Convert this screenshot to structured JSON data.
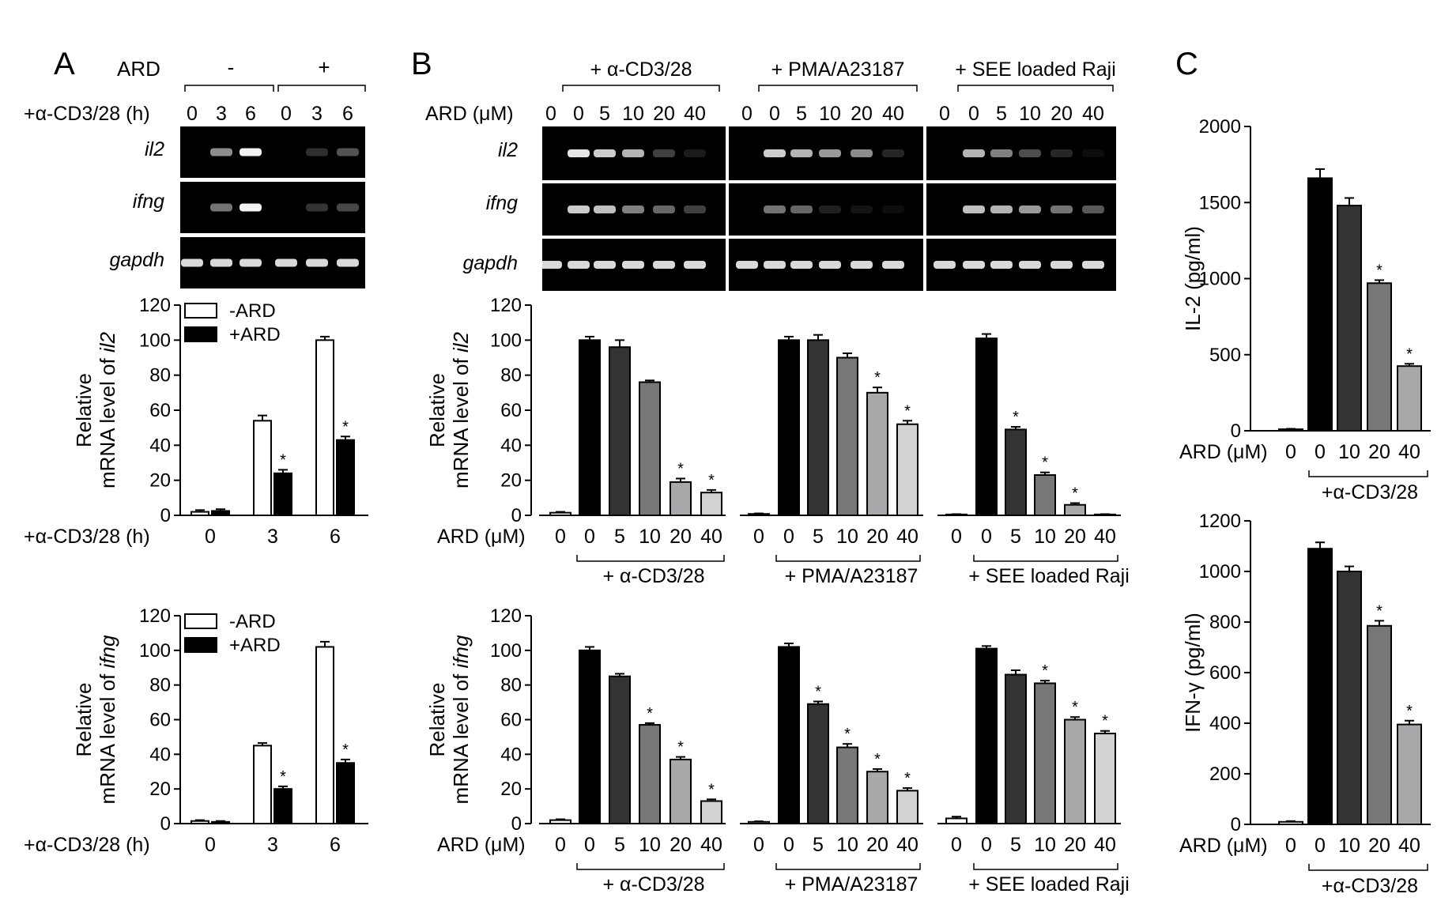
{
  "panel_letters": [
    "A",
    "B",
    "C"
  ],
  "gel_a": {
    "ard_label": "ARD",
    "ard_minus": "-",
    "ard_plus": "+",
    "time_label": "+α-CD3/28 (h)",
    "times": [
      "0",
      "3",
      "6",
      "0",
      "3",
      "6"
    ],
    "genes": [
      "il2",
      "ifng",
      "gapdh"
    ],
    "bands": [
      [
        0.0,
        0.55,
        0.95,
        0.0,
        0.18,
        0.32
      ],
      [
        0.0,
        0.45,
        0.95,
        0.0,
        0.2,
        0.28
      ],
      [
        0.85,
        0.85,
        0.85,
        0.85,
        0.85,
        0.85
      ]
    ]
  },
  "gel_b": {
    "conditions": [
      "+ α-CD3/28",
      "+ PMA/A23187",
      "+ SEE loaded Raji"
    ],
    "ard_label": "ARD (μM)",
    "doses": [
      "0",
      "0",
      "5",
      "10",
      "20",
      "40"
    ],
    "genes": [
      "il2",
      "ifng",
      "gapdh"
    ],
    "bands": [
      [
        [
          0.0,
          0.9,
          0.8,
          0.7,
          0.25,
          0.1
        ],
        [
          0.0,
          0.8,
          0.7,
          0.6,
          0.55,
          0.15
        ],
        [
          0.0,
          0.7,
          0.5,
          0.3,
          0.15,
          0.05
        ]
      ],
      [
        [
          0.0,
          0.8,
          0.75,
          0.5,
          0.4,
          0.25
        ],
        [
          0.0,
          0.45,
          0.4,
          0.12,
          0.08,
          0.05
        ],
        [
          0.0,
          0.75,
          0.7,
          0.6,
          0.45,
          0.35
        ]
      ],
      [
        [
          0.85,
          0.85,
          0.85,
          0.85,
          0.85,
          0.85
        ],
        [
          0.85,
          0.85,
          0.85,
          0.85,
          0.85,
          0.85
        ],
        [
          0.85,
          0.85,
          0.85,
          0.85,
          0.85,
          0.85
        ]
      ]
    ]
  },
  "chart_data": [
    {
      "id": "A-il2",
      "type": "bar",
      "ylabel_main": "Relative",
      "ylabel_prefix": "mRNA level of ",
      "ylabel_gene": "il2",
      "ylim": [
        0,
        120
      ],
      "yticks": [
        "0",
        "20",
        "40",
        "60",
        "80",
        "100",
        "120"
      ],
      "xlabel": "+α-CD3/28 (h)",
      "categories": [
        "0",
        "3",
        "6"
      ],
      "legend": [
        "-ARD",
        "+ARD"
      ],
      "series": [
        {
          "name": "-ARD",
          "values": [
            2,
            54,
            100
          ],
          "errors": [
            1,
            3,
            2
          ],
          "sig": [
            false,
            false,
            false
          ]
        },
        {
          "name": "+ARD",
          "values": [
            2.5,
            24,
            43
          ],
          "errors": [
            1,
            2,
            2
          ],
          "sig": [
            false,
            true,
            true
          ]
        }
      ]
    },
    {
      "id": "A-ifng",
      "type": "bar",
      "ylabel_main": "Relative",
      "ylabel_prefix": "mRNA level of ",
      "ylabel_gene": "ifng",
      "ylim": [
        0,
        120
      ],
      "yticks": [
        "0",
        "20",
        "40",
        "60",
        "80",
        "100",
        "120"
      ],
      "xlabel": "+α-CD3/28 (h)",
      "categories": [
        "0",
        "3",
        "6"
      ],
      "legend": [
        "-ARD",
        "+ARD"
      ],
      "series": [
        {
          "name": "-ARD",
          "values": [
            1.5,
            45,
            102
          ],
          "errors": [
            0.5,
            1.5,
            3
          ],
          "sig": [
            false,
            false,
            false
          ]
        },
        {
          "name": "+ARD",
          "values": [
            1,
            20,
            35
          ],
          "errors": [
            0.5,
            1.5,
            2
          ],
          "sig": [
            false,
            true,
            true
          ]
        }
      ]
    },
    {
      "id": "B-il2",
      "type": "bar",
      "ylabel_main": "Relative",
      "ylabel_prefix": "mRNA level of ",
      "ylabel_gene": "il2",
      "ylim": [
        0,
        120
      ],
      "yticks": [
        "0",
        "20",
        "40",
        "60",
        "80",
        "100",
        "120"
      ],
      "xlabel": "ARD (μM)",
      "categories": [
        "0",
        "0",
        "5",
        "10",
        "20",
        "40"
      ],
      "groups": [
        {
          "label": "+ α-CD3/28",
          "values": [
            1.5,
            100,
            96,
            76,
            19,
            13
          ],
          "errors": [
            0.5,
            2,
            4,
            1,
            2,
            1.5
          ],
          "sig": [
            false,
            false,
            false,
            false,
            true,
            true
          ]
        },
        {
          "label": "+ PMA/A23187",
          "values": [
            0.8,
            100,
            100,
            90,
            70,
            52
          ],
          "errors": [
            0.3,
            2,
            3,
            2.5,
            3,
            2
          ],
          "sig": [
            false,
            false,
            false,
            false,
            true,
            true
          ]
        },
        {
          "label": "+ SEE loaded Raji",
          "values": [
            0.5,
            101,
            49,
            23,
            6,
            0.5
          ],
          "errors": [
            0.2,
            2.5,
            1.5,
            1.5,
            1,
            0.2
          ],
          "sig": [
            false,
            false,
            true,
            true,
            true,
            false
          ]
        }
      ]
    },
    {
      "id": "B-ifng",
      "type": "bar",
      "ylabel_main": "Relative",
      "ylabel_prefix": "mRNA level of ",
      "ylabel_gene": "ifng",
      "ylim": [
        0,
        120
      ],
      "yticks": [
        "0",
        "20",
        "40",
        "60",
        "80",
        "100",
        "120"
      ],
      "xlabel": "ARD (μM)",
      "categories": [
        "0",
        "0",
        "5",
        "10",
        "20",
        "40"
      ],
      "groups": [
        {
          "label": "+ α-CD3/28",
          "values": [
            2,
            100,
            85,
            57,
            37,
            13
          ],
          "errors": [
            0.5,
            2,
            1.5,
            1,
            1.5,
            1
          ],
          "sig": [
            false,
            false,
            false,
            true,
            true,
            true
          ]
        },
        {
          "label": "+ PMA/A23187",
          "values": [
            1,
            102,
            69,
            44,
            30,
            19
          ],
          "errors": [
            0.3,
            2,
            1.5,
            2,
            1.5,
            1.5
          ],
          "sig": [
            false,
            false,
            true,
            true,
            true,
            true
          ]
        },
        {
          "label": "+ SEE loaded Raji",
          "values": [
            3,
            101,
            86,
            81,
            60,
            52
          ],
          "errors": [
            1,
            1.5,
            2.5,
            1.5,
            1.5,
            1.5
          ],
          "sig": [
            false,
            false,
            false,
            true,
            true,
            true
          ]
        }
      ]
    },
    {
      "id": "C-IL2",
      "type": "bar",
      "ylabel": "IL-2 (pg/ml)",
      "ylim": [
        0,
        2000
      ],
      "yticks": [
        "0",
        "500",
        "1000",
        "1500",
        "2000"
      ],
      "xlabel": "ARD (μM)",
      "categories": [
        "0",
        "0",
        "10",
        "20",
        "40"
      ],
      "group_label": "+α-CD3/28",
      "values": [
        10,
        1660,
        1480,
        970,
        425
      ],
      "errors": [
        3,
        60,
        50,
        20,
        15
      ],
      "sig": [
        false,
        false,
        false,
        true,
        true
      ]
    },
    {
      "id": "C-IFNg",
      "type": "bar",
      "ylabel": "IFN-γ (pg/ml)",
      "ylim": [
        0,
        1200
      ],
      "yticks": [
        "0",
        "200",
        "400",
        "600",
        "800",
        "1000",
        "1200"
      ],
      "xlabel": "ARD (μM)",
      "categories": [
        "0",
        "0",
        "10",
        "20",
        "40"
      ],
      "group_label": "+α-CD3/28",
      "values": [
        10,
        1090,
        1000,
        785,
        395
      ],
      "errors": [
        3,
        25,
        20,
        20,
        15
      ],
      "sig": [
        false,
        false,
        false,
        true,
        true
      ]
    }
  ],
  "colors": {
    "bar_shades": [
      "#ffffff",
      "#000000",
      "#333333",
      "#777777",
      "#a8a8aa",
      "#d2d2d2"
    ],
    "gel_bg": "#000000",
    "band": "#ffffff"
  }
}
